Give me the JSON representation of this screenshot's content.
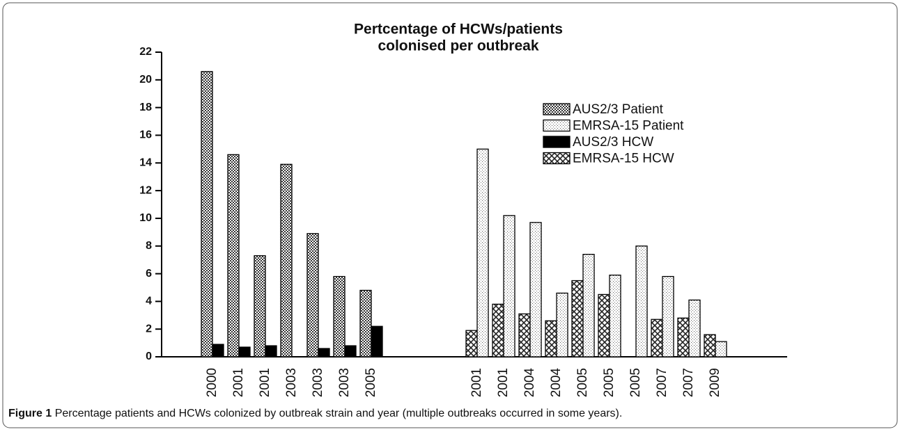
{
  "chart_data": {
    "type": "bar",
    "title": [
      "Pertcentage of HCWs/patients",
      "colonised per outbreak"
    ],
    "categories": [
      null,
      "2000",
      "2001",
      "2001",
      "2003",
      "2003",
      "2003",
      "2005",
      null,
      null,
      null,
      "2001",
      "2001",
      "2004",
      "2004",
      "2005",
      "2005",
      "2005",
      "2007",
      "2007",
      "2009"
    ],
    "series": [
      {
        "name": "AUS2/3 Patient",
        "color": "#000000",
        "pattern": "checker",
        "values": [
          0,
          20.6,
          14.6,
          7.3,
          13.9,
          8.9,
          5.8,
          4.8,
          0,
          null,
          null,
          null,
          null,
          null,
          null,
          null,
          null,
          null,
          null,
          null,
          null
        ]
      },
      {
        "name": "EMRSA-15 Patient",
        "color": "#000000",
        "pattern": "dots",
        "values": [
          null,
          null,
          null,
          null,
          null,
          null,
          null,
          null,
          null,
          null,
          0,
          15.0,
          10.2,
          9.7,
          4.6,
          7.4,
          5.9,
          8.0,
          5.8,
          4.1,
          1.1
        ]
      },
      {
        "name": "AUS2/3 HCW",
        "color": "#000000",
        "pattern": "solid",
        "values": [
          0,
          0.9,
          0.7,
          0.8,
          0,
          0.6,
          0.8,
          2.2,
          0,
          null,
          null,
          null,
          null,
          null,
          null,
          null,
          null,
          null,
          null,
          null,
          null
        ]
      },
      {
        "name": "EMRSA-15 HCW",
        "color": "#000000",
        "pattern": "cross",
        "values": [
          null,
          null,
          null,
          null,
          null,
          null,
          null,
          null,
          null,
          null,
          0,
          1.9,
          3.8,
          3.1,
          2.6,
          5.5,
          4.5,
          0,
          2.7,
          2.8,
          1.6
        ]
      }
    ],
    "ylim": [
      0,
      22
    ],
    "yticks": [
      0,
      2,
      4,
      6,
      8,
      10,
      12,
      14,
      16,
      18,
      20,
      22
    ],
    "grid": false,
    "legend": "upper-right"
  },
  "caption": {
    "label": "Figure 1",
    "text": "Percentage patients and HCWs colonized by outbreak strain and year (multiple outbreaks occurred in some years)."
  }
}
